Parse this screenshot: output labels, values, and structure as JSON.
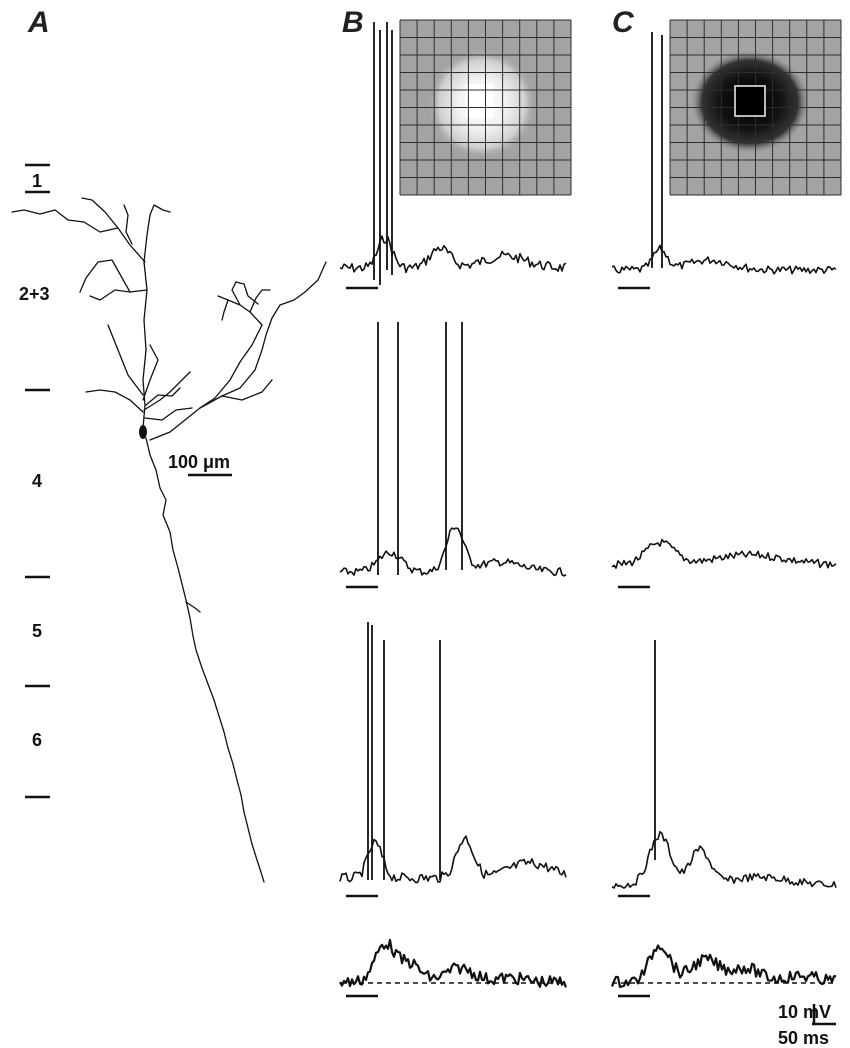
{
  "panels": {
    "a": "A",
    "b": "B",
    "c": "C"
  },
  "layers": {
    "l1": "1",
    "l23": "2+3",
    "l4": "4",
    "l5": "5",
    "l6": "6"
  },
  "scale": {
    "morph": "100 μm",
    "voltage": "10 mV",
    "time": "50 ms"
  },
  "colors": {
    "background": "#ffffff",
    "ink": "#111111",
    "grid_background": "#a3a3a3",
    "grid_lines": "#2e2e2e"
  }
}
